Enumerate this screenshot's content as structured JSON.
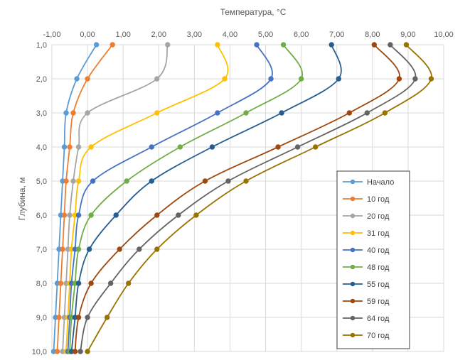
{
  "chart_data": {
    "type": "line",
    "xlabel": "Температура, °C",
    "ylabel": "Глубина, м",
    "xlim": [
      -1,
      10
    ],
    "ylim": [
      1,
      10
    ],
    "x_axis_position": "top",
    "y_axis_reversed": true,
    "grid": true,
    "legend_position": "right",
    "x_ticks": [
      "-1,00",
      "0,00",
      "1,00",
      "2,00",
      "3,00",
      "4,00",
      "5,00",
      "6,00",
      "7,00",
      "8,00",
      "9,00",
      "10,00"
    ],
    "y_ticks": [
      "1,0",
      "2,0",
      "3,0",
      "4,0",
      "5,0",
      "6,0",
      "7,0",
      "8,0",
      "9,0",
      "10,0"
    ],
    "y": [
      1,
      2,
      3,
      4,
      5,
      6,
      7,
      8,
      9,
      10
    ],
    "series": [
      {
        "name": "Начало",
        "color": "#5B9BD5",
        "x": [
          0.25,
          -0.3,
          -0.6,
          -0.65,
          -0.7,
          -0.75,
          -0.8,
          -0.85,
          -0.9,
          -0.95
        ]
      },
      {
        "name": "10 год",
        "color": "#ED7D31",
        "x": [
          0.7,
          0.0,
          -0.4,
          -0.5,
          -0.6,
          -0.65,
          -0.7,
          -0.75,
          -0.8,
          -0.85
        ]
      },
      {
        "name": "20 год",
        "color": "#A5A5A5",
        "x": [
          2.25,
          1.95,
          0.0,
          -0.25,
          -0.4,
          -0.5,
          -0.55,
          -0.6,
          -0.65,
          -0.7
        ]
      },
      {
        "name": "31 год",
        "color": "#FFC000",
        "x": [
          3.65,
          3.85,
          1.95,
          0.1,
          -0.25,
          -0.35,
          -0.45,
          -0.5,
          -0.55,
          -0.6
        ]
      },
      {
        "name": "40 год",
        "color": "#4472C4",
        "x": [
          4.75,
          5.15,
          3.65,
          1.8,
          0.15,
          -0.25,
          -0.35,
          -0.45,
          -0.5,
          -0.55
        ]
      },
      {
        "name": "48 год",
        "color": "#70AD47",
        "x": [
          5.5,
          6.0,
          4.45,
          2.6,
          1.1,
          0.1,
          -0.25,
          -0.35,
          -0.45,
          -0.5
        ]
      },
      {
        "name": "55 год",
        "color": "#255E91",
        "x": [
          6.85,
          7.05,
          5.45,
          3.5,
          1.8,
          0.8,
          0.05,
          -0.25,
          -0.35,
          -0.45
        ]
      },
      {
        "name": "59 год",
        "color": "#9E480E",
        "x": [
          8.05,
          8.75,
          7.35,
          5.35,
          3.3,
          1.95,
          0.9,
          0.1,
          -0.25,
          -0.35
        ]
      },
      {
        "name": "64 год",
        "color": "#636363",
        "x": [
          8.5,
          9.2,
          7.85,
          5.9,
          3.95,
          2.55,
          1.45,
          0.65,
          0.0,
          -0.2
        ]
      },
      {
        "name": "70 год",
        "color": "#997300",
        "x": [
          8.95,
          9.65,
          8.35,
          6.4,
          4.45,
          3.05,
          1.95,
          1.15,
          0.55,
          0.0
        ]
      }
    ]
  }
}
